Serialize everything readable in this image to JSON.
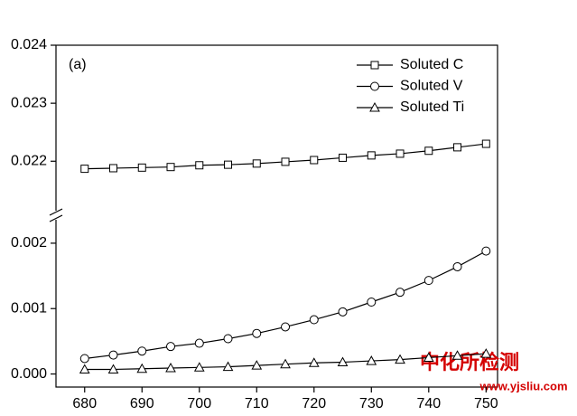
{
  "chart_data": {
    "type": "line",
    "annotation": "(a)",
    "x": [
      680,
      685,
      690,
      695,
      700,
      705,
      710,
      715,
      720,
      725,
      730,
      735,
      740,
      745,
      750
    ],
    "series": [
      {
        "name": "Soluted C",
        "marker": "square",
        "color": "#000000",
        "values": [
          0.02187,
          0.02188,
          0.02189,
          0.0219,
          0.02193,
          0.02194,
          0.02196,
          0.02199,
          0.02202,
          0.02206,
          0.0221,
          0.02213,
          0.02218,
          0.02224,
          0.0223
        ]
      },
      {
        "name": "Soluted V",
        "marker": "circle",
        "color": "#000000",
        "values": [
          0.000236,
          0.00029,
          0.00035,
          0.00042,
          0.00047,
          0.00054,
          0.00062,
          0.00072,
          0.00083,
          0.00095,
          0.0011,
          0.00125,
          0.00143,
          0.00164,
          0.00188
        ]
      },
      {
        "name": "Soluted Ti",
        "marker": "triangle",
        "color": "#000000",
        "values": [
          7e-05,
          7e-05,
          8e-05,
          9e-05,
          0.0001,
          0.00011,
          0.00013,
          0.00015,
          0.00017,
          0.00018,
          0.0002,
          0.00022,
          0.00025,
          0.00028,
          0.00031
        ]
      }
    ],
    "xlim": [
      675,
      752
    ],
    "xticks": [
      680,
      690,
      700,
      710,
      720,
      730,
      740,
      750
    ],
    "ylim": [
      -0.0002,
      0.024
    ],
    "ybreak": [
      0.0024,
      0.0211
    ],
    "yticks": [
      {
        "value": 0,
        "label": "0.000"
      },
      0.001,
      0.002,
      0.022,
      0.023,
      0.024
    ],
    "legend": "top-right",
    "watermark": "中化所检测",
    "watermark_url": "www.yjsliu.com"
  }
}
